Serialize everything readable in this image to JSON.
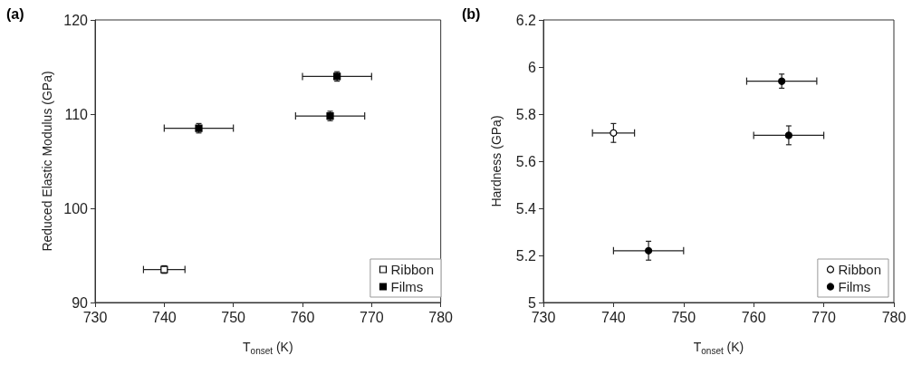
{
  "chart_data": [
    {
      "type": "scatter",
      "title": "(a)",
      "xlabel": "T$_{onset}$ (K)",
      "ylabel": "Reduced Elastic Modulus (GPa)",
      "xlim": [
        730,
        780
      ],
      "xticks": [
        730,
        740,
        750,
        760,
        770,
        780
      ],
      "ylim": [
        90,
        120
      ],
      "yticks": [
        90,
        100,
        110,
        120
      ],
      "grid": false,
      "legend": "bottom right",
      "marker": "square",
      "series": [
        {
          "name": "Ribbon",
          "color": "#ffffff",
          "x": [
            740
          ],
          "values": [
            93.5
          ],
          "errors": [
            0.4
          ],
          "xerrors": [
            3
          ]
        },
        {
          "name": "Films",
          "color": "#000000",
          "x": [
            745,
            764,
            765
          ],
          "values": [
            108.5,
            109.8,
            114.0
          ],
          "errors": [
            0.5,
            0.5,
            0.5
          ],
          "xerrors": [
            5,
            5,
            5
          ]
        }
      ]
    },
    {
      "type": "scatter",
      "title": "(b)",
      "xlabel": "T$_{onset}$ (K)",
      "ylabel": "Hardness (GPa)",
      "xlim": [
        730,
        780
      ],
      "xticks": [
        730,
        740,
        750,
        760,
        770,
        780
      ],
      "ylim": [
        5,
        6.2
      ],
      "yticks": [
        5,
        5.2,
        5.4,
        5.6,
        5.8,
        6,
        6.2
      ],
      "grid": false,
      "legend": "bottom right",
      "marker": "circle",
      "series": [
        {
          "name": "Ribbon",
          "color": "#ffffff",
          "x": [
            740
          ],
          "values": [
            5.72
          ],
          "errors": [
            0.04
          ],
          "xerrors": [
            3
          ]
        },
        {
          "name": "Films",
          "color": "#000000",
          "x": [
            745,
            764,
            765
          ],
          "values": [
            5.22,
            5.94,
            5.71
          ],
          "errors": [
            0.04,
            0.03,
            0.04
          ],
          "xerrors": [
            5,
            5,
            5
          ]
        }
      ]
    }
  ]
}
